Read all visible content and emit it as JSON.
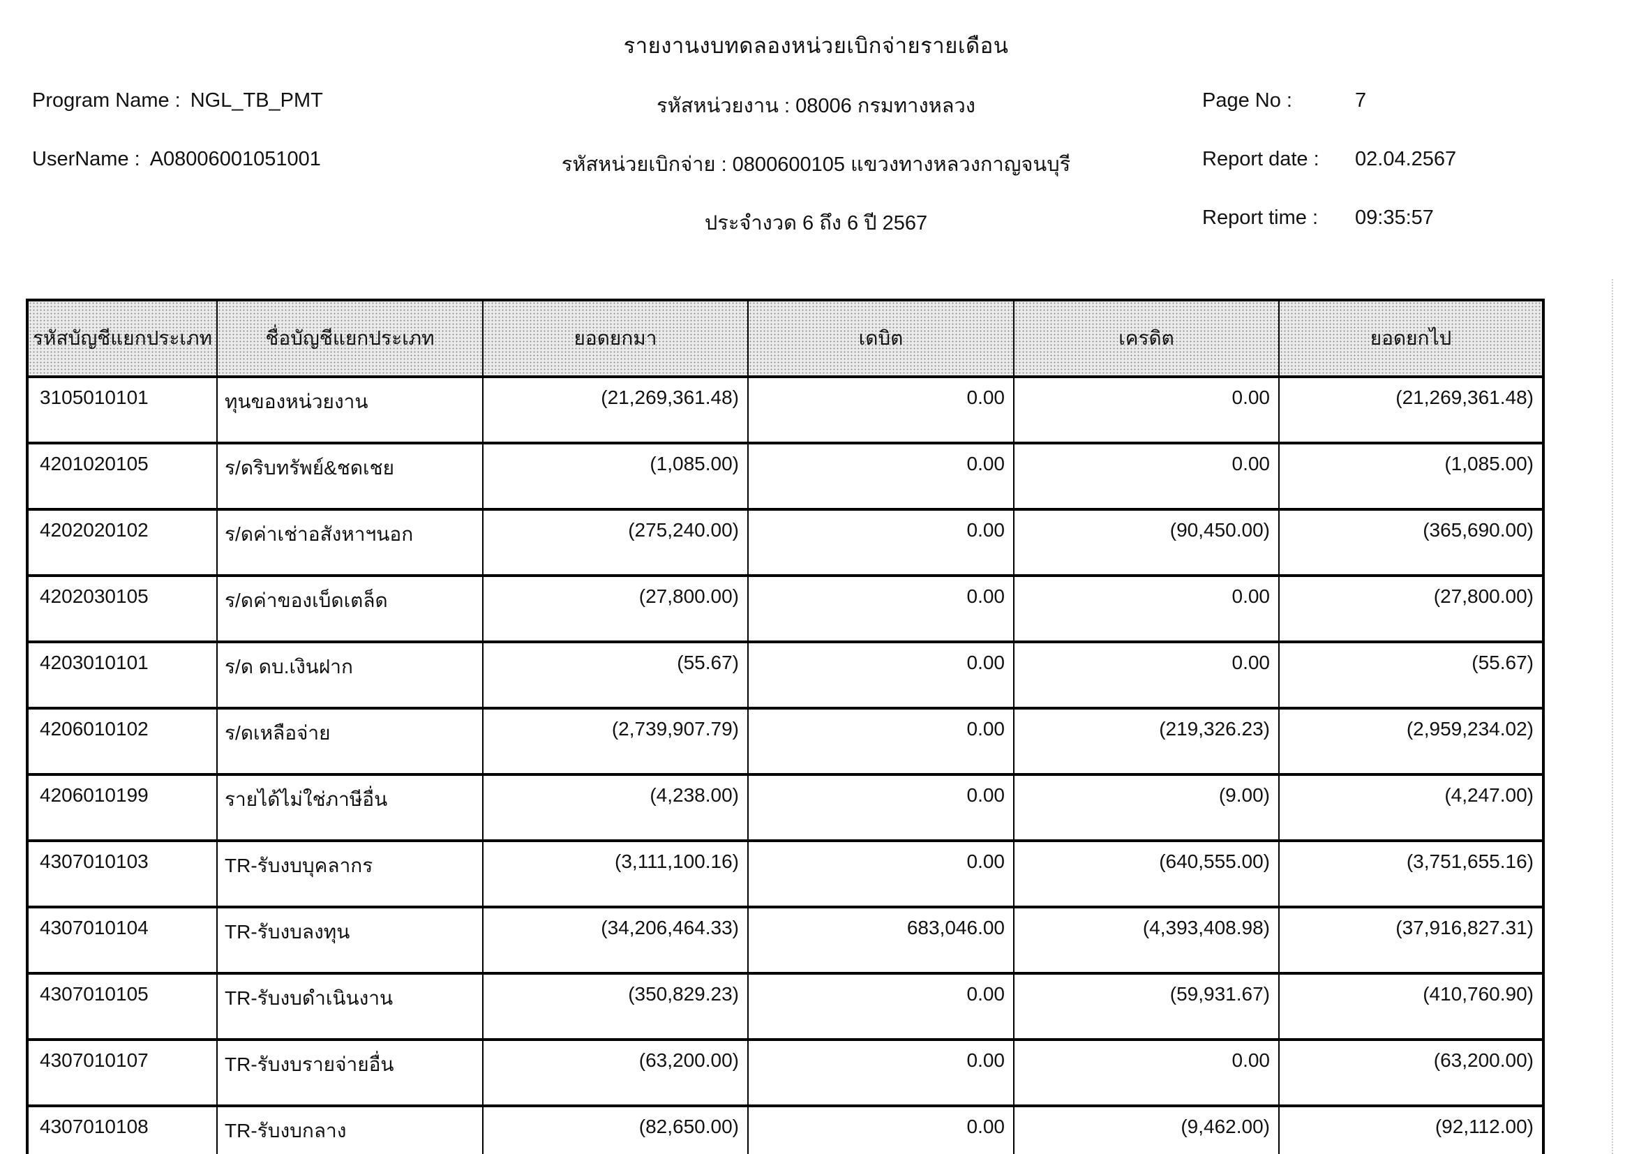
{
  "document": {
    "title": "รายงานงบทดลองหน่วยเบิกจ่ายรายเดือน"
  },
  "header": {
    "program_name": {
      "label": "Program Name :",
      "value": "NGL_TB_PMT"
    },
    "username": {
      "label": "UserName :",
      "value": "A08006001051001"
    },
    "agency_code_line": "รหัสหน่วยงาน : 08006 กรมทางหลวง",
    "disbursement_unit_line": "รหัสหน่วยเบิกจ่าย : 0800600105 แขวงทางหลวงกาญจนบุรี",
    "period_line": "ประจำงวด 6 ถึง 6 ปี 2567",
    "page_no": {
      "label": "Page No :",
      "value": "7"
    },
    "report_date": {
      "label": "Report date :",
      "value": "02.04.2567"
    },
    "report_time": {
      "label": "Report time :",
      "value": "09:35:57"
    }
  },
  "table": {
    "columns": [
      "รหัสบัญชีแยกประเภท",
      "ชื่อบัญชีแยกประเภท",
      "ยอดยกมา",
      "เดบิต",
      "เครดิต",
      "ยอดยกไป"
    ],
    "rows": [
      [
        "3105010101",
        "ทุนของหน่วยงาน",
        "(21,269,361.48)",
        "0.00",
        "0.00",
        "(21,269,361.48)"
      ],
      [
        "4201020105",
        "ร/ดริบทรัพย์&ชดเชย",
        "(1,085.00)",
        "0.00",
        "0.00",
        "(1,085.00)"
      ],
      [
        "4202020102",
        "ร/ดค่าเช่าอสังหาฯนอก",
        "(275,240.00)",
        "0.00",
        "(90,450.00)",
        "(365,690.00)"
      ],
      [
        "4202030105",
        "ร/ดค่าของเบ็ดเตล็ด",
        "(27,800.00)",
        "0.00",
        "0.00",
        "(27,800.00)"
      ],
      [
        "4203010101",
        "ร/ด ดบ.เงินฝาก",
        "(55.67)",
        "0.00",
        "0.00",
        "(55.67)"
      ],
      [
        "4206010102",
        "ร/ดเหลือจ่าย",
        "(2,739,907.79)",
        "0.00",
        "(219,326.23)",
        "(2,959,234.02)"
      ],
      [
        "4206010199",
        "รายได้ไม่ใช่ภาษีอื่น",
        "(4,238.00)",
        "0.00",
        "(9.00)",
        "(4,247.00)"
      ],
      [
        "4307010103",
        "TR-รับงบบุคลากร",
        "(3,111,100.16)",
        "0.00",
        "(640,555.00)",
        "(3,751,655.16)"
      ],
      [
        "4307010104",
        "TR-รับงบลงทุน",
        "(34,206,464.33)",
        "683,046.00",
        "(4,393,408.98)",
        "(37,916,827.31)"
      ],
      [
        "4307010105",
        "TR-รับงบดำเนินงาน",
        "(350,829.23)",
        "0.00",
        "(59,931.67)",
        "(410,760.90)"
      ],
      [
        "4307010107",
        "TR-รับงบรายจ่ายอื่น",
        "(63,200.00)",
        "0.00",
        "0.00",
        "(63,200.00)"
      ],
      [
        "4307010108",
        "TR-รับงบกลาง",
        "(82,650.00)",
        "0.00",
        "(9,462.00)",
        "(92,112.00)"
      ]
    ]
  }
}
